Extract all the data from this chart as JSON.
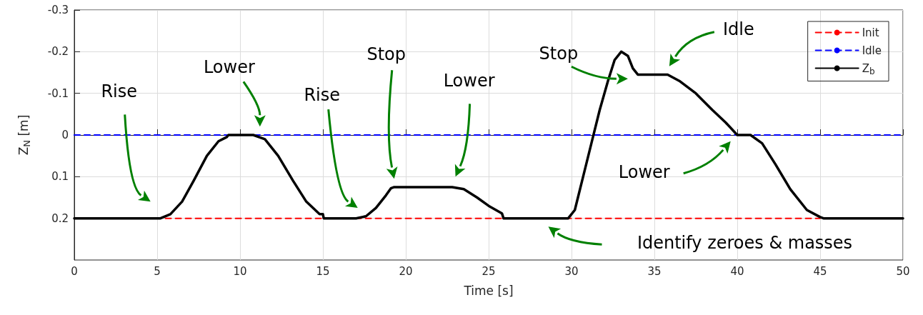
{
  "chart_data": {
    "type": "line",
    "xlabel": "Time [s]",
    "ylabel": "Z$_{N}$ [m]",
    "xlim": [
      0,
      50
    ],
    "xticks": [
      0,
      5,
      10,
      15,
      20,
      25,
      30,
      35,
      40,
      45,
      50
    ],
    "ylim": [
      0.3,
      -0.3
    ],
    "yticks": [
      -0.3,
      -0.2,
      -0.1,
      0,
      0.1,
      0.2
    ],
    "grid": true,
    "legend": "top right",
    "marker": "none",
    "series": [
      {
        "name": "Init",
        "color": "#ff0000",
        "line_style": "dashed",
        "x": [
          5.5,
          45
        ],
        "values": [
          0.2,
          0.2
        ]
      },
      {
        "name": "Idle",
        "color": "#0000ff",
        "line_style": "dashed",
        "x": [
          0,
          50
        ],
        "values": [
          0,
          0
        ]
      },
      {
        "name": "Z$_{b}$",
        "color": "#000000",
        "line_style": "solid",
        "x": [
          0,
          5.2,
          5.8,
          6.5,
          7.2,
          8.0,
          8.7,
          9.2,
          9.3,
          10.8,
          11.5,
          12.3,
          13.2,
          14.0,
          14.8,
          15.0,
          15.05,
          17.0,
          17.6,
          18.2,
          18.8,
          19.1,
          19.3,
          22.8,
          23.5,
          24.3,
          25.0,
          25.8,
          25.9,
          29.8,
          30.2,
          30.7,
          31.2,
          31.7,
          32.2,
          32.6,
          33.0,
          33.4,
          33.7,
          34.0,
          35.8,
          36.5,
          37.5,
          38.5,
          39.3,
          40.0,
          40.8,
          41.5,
          42.3,
          43.2,
          44.2,
          45.0,
          45.2,
          50
        ],
        "values": [
          0.2,
          0.2,
          0.19,
          0.16,
          0.11,
          0.05,
          0.015,
          0.005,
          0,
          0,
          0.01,
          0.05,
          0.11,
          0.16,
          0.19,
          0.19,
          0.2,
          0.2,
          0.195,
          0.175,
          0.145,
          0.128,
          0.125,
          0.125,
          0.13,
          0.15,
          0.17,
          0.188,
          0.2,
          0.2,
          0.18,
          0.1,
          0.02,
          -0.06,
          -0.13,
          -0.18,
          -0.2,
          -0.19,
          -0.16,
          -0.145,
          -0.145,
          -0.13,
          -0.1,
          -0.06,
          -0.03,
          0,
          0,
          0.02,
          0.07,
          0.13,
          0.18,
          0.197,
          0.2,
          0.2
        ]
      }
    ],
    "annotations": [
      "Rise",
      "Lower",
      "Rise",
      "Stop",
      "Lower",
      "Stop",
      "Idle",
      "Lower",
      "Identify zeroes & masses"
    ]
  }
}
